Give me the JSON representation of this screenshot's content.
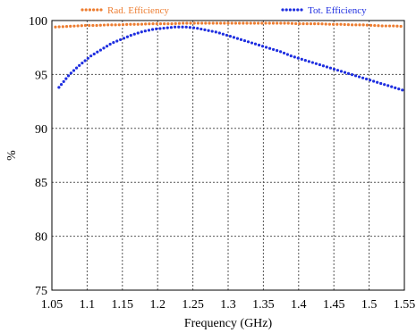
{
  "chart_data": {
    "type": "scatter",
    "xlabel": "Frequency (GHz)",
    "ylabel": "%",
    "xlim": [
      1.05,
      1.55
    ],
    "ylim": [
      75,
      100
    ],
    "x_ticks": [
      1.05,
      1.1,
      1.15,
      1.2,
      1.25,
      1.3,
      1.35,
      1.4,
      1.45,
      1.5,
      1.55
    ],
    "x_tick_labels": [
      "1.05",
      "1.1",
      "1.15",
      "1.2",
      "1.25",
      "1.3",
      "1.35",
      "1.4",
      "1.45",
      "1.5",
      "1.55"
    ],
    "y_ticks": [
      75,
      80,
      85,
      90,
      95,
      100
    ],
    "y_tick_labels": [
      "75",
      "80",
      "85",
      "90",
      "95",
      "100"
    ],
    "grid": true,
    "legend_position": "top",
    "series": [
      {
        "name": "Rad. Efficiency",
        "color": "#ED7D31",
        "x": [
          1.055,
          1.07,
          1.085,
          1.1,
          1.115,
          1.13,
          1.145,
          1.16,
          1.175,
          1.19,
          1.205,
          1.22,
          1.235,
          1.25,
          1.265,
          1.28,
          1.295,
          1.31,
          1.325,
          1.34,
          1.355,
          1.37,
          1.385,
          1.4,
          1.415,
          1.43,
          1.445,
          1.46,
          1.475,
          1.49,
          1.505,
          1.52,
          1.535,
          1.55
        ],
        "y": [
          99.4,
          99.45,
          99.5,
          99.55,
          99.55,
          99.6,
          99.6,
          99.65,
          99.65,
          99.7,
          99.7,
          99.7,
          99.75,
          99.75,
          99.75,
          99.75,
          99.75,
          99.75,
          99.75,
          99.75,
          99.75,
          99.75,
          99.75,
          99.7,
          99.7,
          99.7,
          99.65,
          99.65,
          99.6,
          99.6,
          99.55,
          99.5,
          99.5,
          99.45
        ]
      },
      {
        "name": "Tot. Efficiency",
        "color": "#1F2FE0",
        "x": [
          1.06,
          1.075,
          1.09,
          1.105,
          1.12,
          1.135,
          1.15,
          1.165,
          1.18,
          1.195,
          1.21,
          1.225,
          1.24,
          1.255,
          1.27,
          1.285,
          1.3,
          1.315,
          1.33,
          1.345,
          1.36,
          1.375,
          1.39,
          1.405,
          1.42,
          1.435,
          1.45,
          1.465,
          1.48,
          1.495,
          1.51,
          1.525,
          1.54,
          1.55
        ],
        "y": [
          93.8,
          95.0,
          95.9,
          96.7,
          97.3,
          97.9,
          98.3,
          98.7,
          99.0,
          99.2,
          99.3,
          99.4,
          99.4,
          99.3,
          99.1,
          98.9,
          98.6,
          98.3,
          98.0,
          97.7,
          97.4,
          97.1,
          96.7,
          96.4,
          96.1,
          95.8,
          95.5,
          95.2,
          94.9,
          94.6,
          94.3,
          94.0,
          93.7,
          93.5
        ]
      }
    ]
  }
}
